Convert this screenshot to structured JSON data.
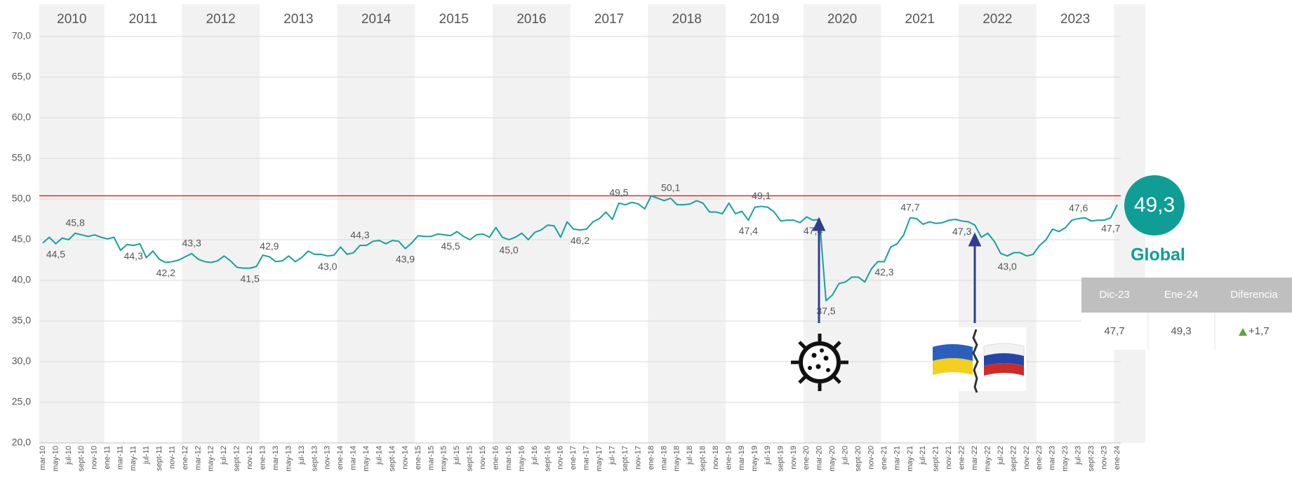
{
  "chart_data": {
    "type": "line",
    "years": [
      "2010",
      "2011",
      "2012",
      "2013",
      "2014",
      "2015",
      "2016",
      "2017",
      "2018",
      "2019",
      "2020",
      "2021",
      "2022",
      "2023"
    ],
    "categories": [
      "mar-10",
      null,
      "may-10",
      null,
      "jul-10",
      null,
      "sept-10",
      null,
      "nov-10",
      null,
      "ene-11",
      null,
      "mar-11",
      null,
      "may-11",
      null,
      "jul-11",
      null,
      "sept-11",
      null,
      "nov-11",
      null,
      "ene-12",
      null,
      "mar-12",
      null,
      "may-12",
      null,
      "jul-12",
      null,
      "sept-12",
      null,
      "nov-12",
      null,
      "ene-13",
      null,
      "mar-13",
      null,
      "may-13",
      null,
      "jul-13",
      null,
      "sept-13",
      null,
      "nov-13",
      null,
      "ene-14",
      null,
      "mar-14",
      null,
      "may-14",
      null,
      "jul-14",
      null,
      "sept-14",
      null,
      "nov-14",
      null,
      "ene-15",
      null,
      "mar-15",
      null,
      "may-15",
      null,
      "jul-15",
      null,
      "sept-15",
      null,
      "nov-15",
      null,
      "ene-16",
      null,
      "mar-16",
      null,
      "may-16",
      null,
      "jul-16",
      null,
      "sept-16",
      null,
      "nov-16",
      null,
      "ene-17",
      null,
      "mar-17",
      null,
      "may-17",
      null,
      "jul-17",
      null,
      "sept-17",
      null,
      "nov-17",
      null,
      "ene-18",
      null,
      "mar-18",
      null,
      "may-18",
      null,
      "jul-18",
      null,
      "sept-18",
      null,
      "nov-18",
      null,
      "ene-19",
      null,
      "mar-19",
      null,
      "may-19",
      null,
      "jul-19",
      null,
      "sept-19",
      null,
      "nov-19",
      null,
      "ene-20",
      null,
      "mar-20",
      null,
      "may-20",
      null,
      "jul-20",
      null,
      "sept-20",
      null,
      "nov-20",
      null,
      "ene-21",
      null,
      "mar-21",
      null,
      "may-21",
      null,
      "jul-21",
      null,
      "sept-21",
      null,
      "nov-21",
      null,
      "ene-22",
      null,
      "mar-22",
      null,
      "may-22",
      null,
      "jul-22",
      null,
      "sept-22",
      null,
      "nov-22",
      null,
      "ene-23",
      null,
      "mar-23",
      null,
      "may-23",
      null,
      "jul-23",
      null,
      "sept-23",
      null,
      "nov-23",
      null,
      "ene-24"
    ],
    "series": [
      {
        "color": "#16a19b",
        "values": [
          44.6,
          45.3,
          44.5,
          45.2,
          45.0,
          45.8,
          45.6,
          45.4,
          45.6,
          45.3,
          45.1,
          45.3,
          43.7,
          44.4,
          44.3,
          44.5,
          42.8,
          43.6,
          42.6,
          42.2,
          42.3,
          42.5,
          42.9,
          43.3,
          42.6,
          42.3,
          42.2,
          42.4,
          43.0,
          42.4,
          41.6,
          41.5,
          41.5,
          41.7,
          43.1,
          42.9,
          42.3,
          42.4,
          43.0,
          42.3,
          42.8,
          43.6,
          43.2,
          43.2,
          43.0,
          43.1,
          44.1,
          43.2,
          43.4,
          44.3,
          44.3,
          44.8,
          44.9,
          44.5,
          44.9,
          44.8,
          43.9,
          44.6,
          45.5,
          45.4,
          45.4,
          45.7,
          45.6,
          45.5,
          46.0,
          45.4,
          45.0,
          45.6,
          45.7,
          45.3,
          46.5,
          45.3,
          45.0,
          45.3,
          45.8,
          45.0,
          45.9,
          46.2,
          46.8,
          46.7,
          45.3,
          47.2,
          46.3,
          46.2,
          46.3,
          47.2,
          47.6,
          48.4,
          47.5,
          49.5,
          49.3,
          49.6,
          49.4,
          48.8,
          50.4,
          50.1,
          49.8,
          50.1,
          49.3,
          49.3,
          49.4,
          49.8,
          49.5,
          48.4,
          48.4,
          48.2,
          49.5,
          48.2,
          48.5,
          47.4,
          49.0,
          49.1,
          49.0,
          48.4,
          47.3,
          47.4,
          47.4,
          47.1,
          47.8,
          47.4,
          47.5,
          37.5,
          38.2,
          39.6,
          39.8,
          40.4,
          40.4,
          39.8,
          41.4,
          42.3,
          42.3,
          44.1,
          44.5,
          45.6,
          47.7,
          47.6,
          46.9,
          47.2,
          47.0,
          47.1,
          47.4,
          47.5,
          47.3,
          47.2,
          46.8,
          45.3,
          45.8,
          44.8,
          43.3,
          43.0,
          43.4,
          43.4,
          43.0,
          43.2,
          44.3,
          45.0,
          46.3,
          46.0,
          46.5,
          47.4,
          47.6,
          47.7,
          47.3,
          47.4,
          47.4,
          47.7,
          49.3
        ],
        "value_labels": [
          null,
          null,
          "44,5",
          null,
          null,
          "45,8",
          null,
          null,
          null,
          null,
          null,
          null,
          null,
          null,
          "44,3",
          null,
          null,
          null,
          null,
          "42,2",
          null,
          null,
          null,
          "43,3",
          null,
          null,
          null,
          null,
          null,
          null,
          null,
          null,
          "41,5",
          null,
          null,
          "42,9",
          null,
          null,
          null,
          null,
          null,
          null,
          null,
          null,
          "43,0",
          null,
          null,
          null,
          null,
          "44,3",
          null,
          null,
          null,
          null,
          null,
          null,
          "43,9",
          null,
          null,
          null,
          null,
          null,
          null,
          "45,5",
          null,
          null,
          null,
          null,
          null,
          null,
          null,
          null,
          "45,0",
          null,
          null,
          null,
          null,
          null,
          null,
          null,
          null,
          null,
          null,
          "46,2",
          null,
          null,
          null,
          null,
          null,
          "49,5",
          null,
          null,
          null,
          null,
          null,
          null,
          null,
          "50,1",
          null,
          null,
          null,
          null,
          null,
          null,
          null,
          null,
          null,
          null,
          null,
          "47,4",
          null,
          "49,1",
          null,
          null,
          null,
          null,
          null,
          null,
          null,
          "47,4",
          null,
          "37,5",
          null,
          null,
          null,
          null,
          null,
          null,
          null,
          null,
          "42,3",
          null,
          null,
          null,
          "47,7",
          null,
          null,
          null,
          null,
          null,
          null,
          null,
          "47,3",
          null,
          null,
          null,
          null,
          null,
          null,
          "43,0",
          null,
          null,
          null,
          null,
          null,
          null,
          null,
          null,
          null,
          null,
          "47,6",
          null,
          null,
          null,
          null,
          "47,7",
          null
        ]
      }
    ],
    "ylim": [
      20,
      70
    ],
    "yticks": [
      {
        "value": 20,
        "label": "20,0"
      },
      {
        "value": 25,
        "label": "25,0"
      },
      {
        "value": 30,
        "label": "30,0"
      },
      {
        "value": 35,
        "label": "35,0"
      },
      {
        "value": 40,
        "label": "40,0"
      },
      {
        "value": 45,
        "label": "45,0"
      },
      {
        "value": 50,
        "label": "50,0"
      },
      {
        "value": 55,
        "label": "55,0"
      },
      {
        "value": 60,
        "label": "60,0"
      },
      {
        "value": 65,
        "label": "65,0"
      },
      {
        "value": 70,
        "label": "70,0"
      }
    ],
    "grid": true,
    "reference_line": {
      "value": 50.4,
      "color": "#e3262b"
    }
  },
  "summary": {
    "big_value": "49,3",
    "label": "Global",
    "headers": [
      "Dic-23",
      "Ene-24",
      "Diferencia"
    ],
    "row": [
      "47,7",
      "49,3",
      "+1,7"
    ]
  }
}
